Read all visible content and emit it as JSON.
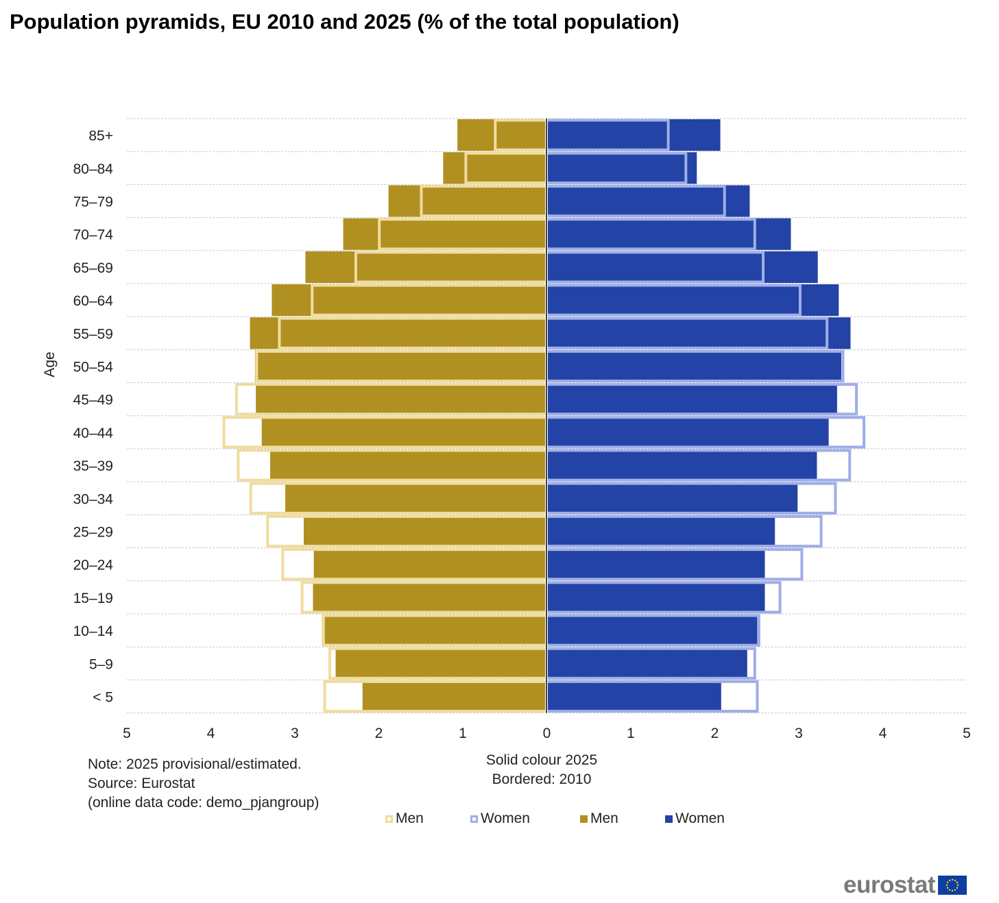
{
  "chart_data": {
    "type": "bar",
    "orientation": "horizontal",
    "title": "Population pyramids, EU 2010 and 2025 (% of the total population)",
    "ylabel": "Age",
    "xlabel": "",
    "xlim": [
      -5,
      5
    ],
    "x_ticks": [
      "5",
      "4",
      "3",
      "2",
      "1",
      "0",
      "1",
      "2",
      "3",
      "4",
      "5"
    ],
    "grid": "dashed horizontal",
    "categories": [
      "85+",
      "80–84",
      "75–79",
      "70–74",
      "65–69",
      "60–64",
      "55–59",
      "50–54",
      "45–49",
      "40–44",
      "35–39",
      "30–34",
      "25–29",
      "20–24",
      "15–19",
      "10–14",
      "5–9",
      "< 5"
    ],
    "series": [
      {
        "name": "Men",
        "year": "2025",
        "style": "solid",
        "side": "left",
        "color": "#B09021",
        "values": [
          1.06,
          1.23,
          1.88,
          2.42,
          2.87,
          3.27,
          3.53,
          3.47,
          3.46,
          3.39,
          3.29,
          3.11,
          2.89,
          2.77,
          2.78,
          2.64,
          2.51,
          2.19
        ]
      },
      {
        "name": "Women",
        "year": "2025",
        "style": "solid",
        "side": "right",
        "color": "#2443A6",
        "values": [
          2.07,
          1.79,
          2.42,
          2.91,
          3.23,
          3.48,
          3.62,
          3.51,
          3.46,
          3.36,
          3.22,
          2.99,
          2.72,
          2.6,
          2.6,
          2.51,
          2.39,
          2.08
        ]
      },
      {
        "name": "Men",
        "year": "2010",
        "style": "bordered",
        "side": "left",
        "color": "#F0DC9C",
        "values": [
          0.61,
          0.96,
          1.49,
          1.99,
          2.27,
          2.79,
          3.18,
          3.45,
          3.69,
          3.84,
          3.67,
          3.52,
          3.32,
          3.14,
          2.91,
          2.66,
          2.58,
          2.64
        ]
      },
      {
        "name": "Women",
        "year": "2010",
        "style": "bordered",
        "side": "right",
        "color": "#9EAEE8",
        "values": [
          1.45,
          1.66,
          2.12,
          2.48,
          2.58,
          3.02,
          3.34,
          3.53,
          3.69,
          3.78,
          3.61,
          3.44,
          3.27,
          3.04,
          2.78,
          2.53,
          2.48,
          2.51
        ]
      }
    ],
    "legend": {
      "position": "bottom",
      "items": [
        {
          "label": "Men",
          "color": "#F0DC9C",
          "style": "bordered"
        },
        {
          "label": "Women",
          "color": "#9EAEE8",
          "style": "bordered"
        },
        {
          "label": "Men",
          "color": "#B09021",
          "style": "solid"
        },
        {
          "label": "Women",
          "color": "#2443A6",
          "style": "solid"
        }
      ]
    }
  },
  "notes": {
    "line1": "Note: 2025 provisional/estimated.",
    "line2": "Source: Eurostat",
    "line3": "(online data code: demo_pjangroup)"
  },
  "explain": {
    "line1": "Solid colour 2025",
    "line2": "Bordered: 2010"
  },
  "logo": {
    "text": "eurostat",
    "flag_icon": "eu-flag-icon"
  }
}
